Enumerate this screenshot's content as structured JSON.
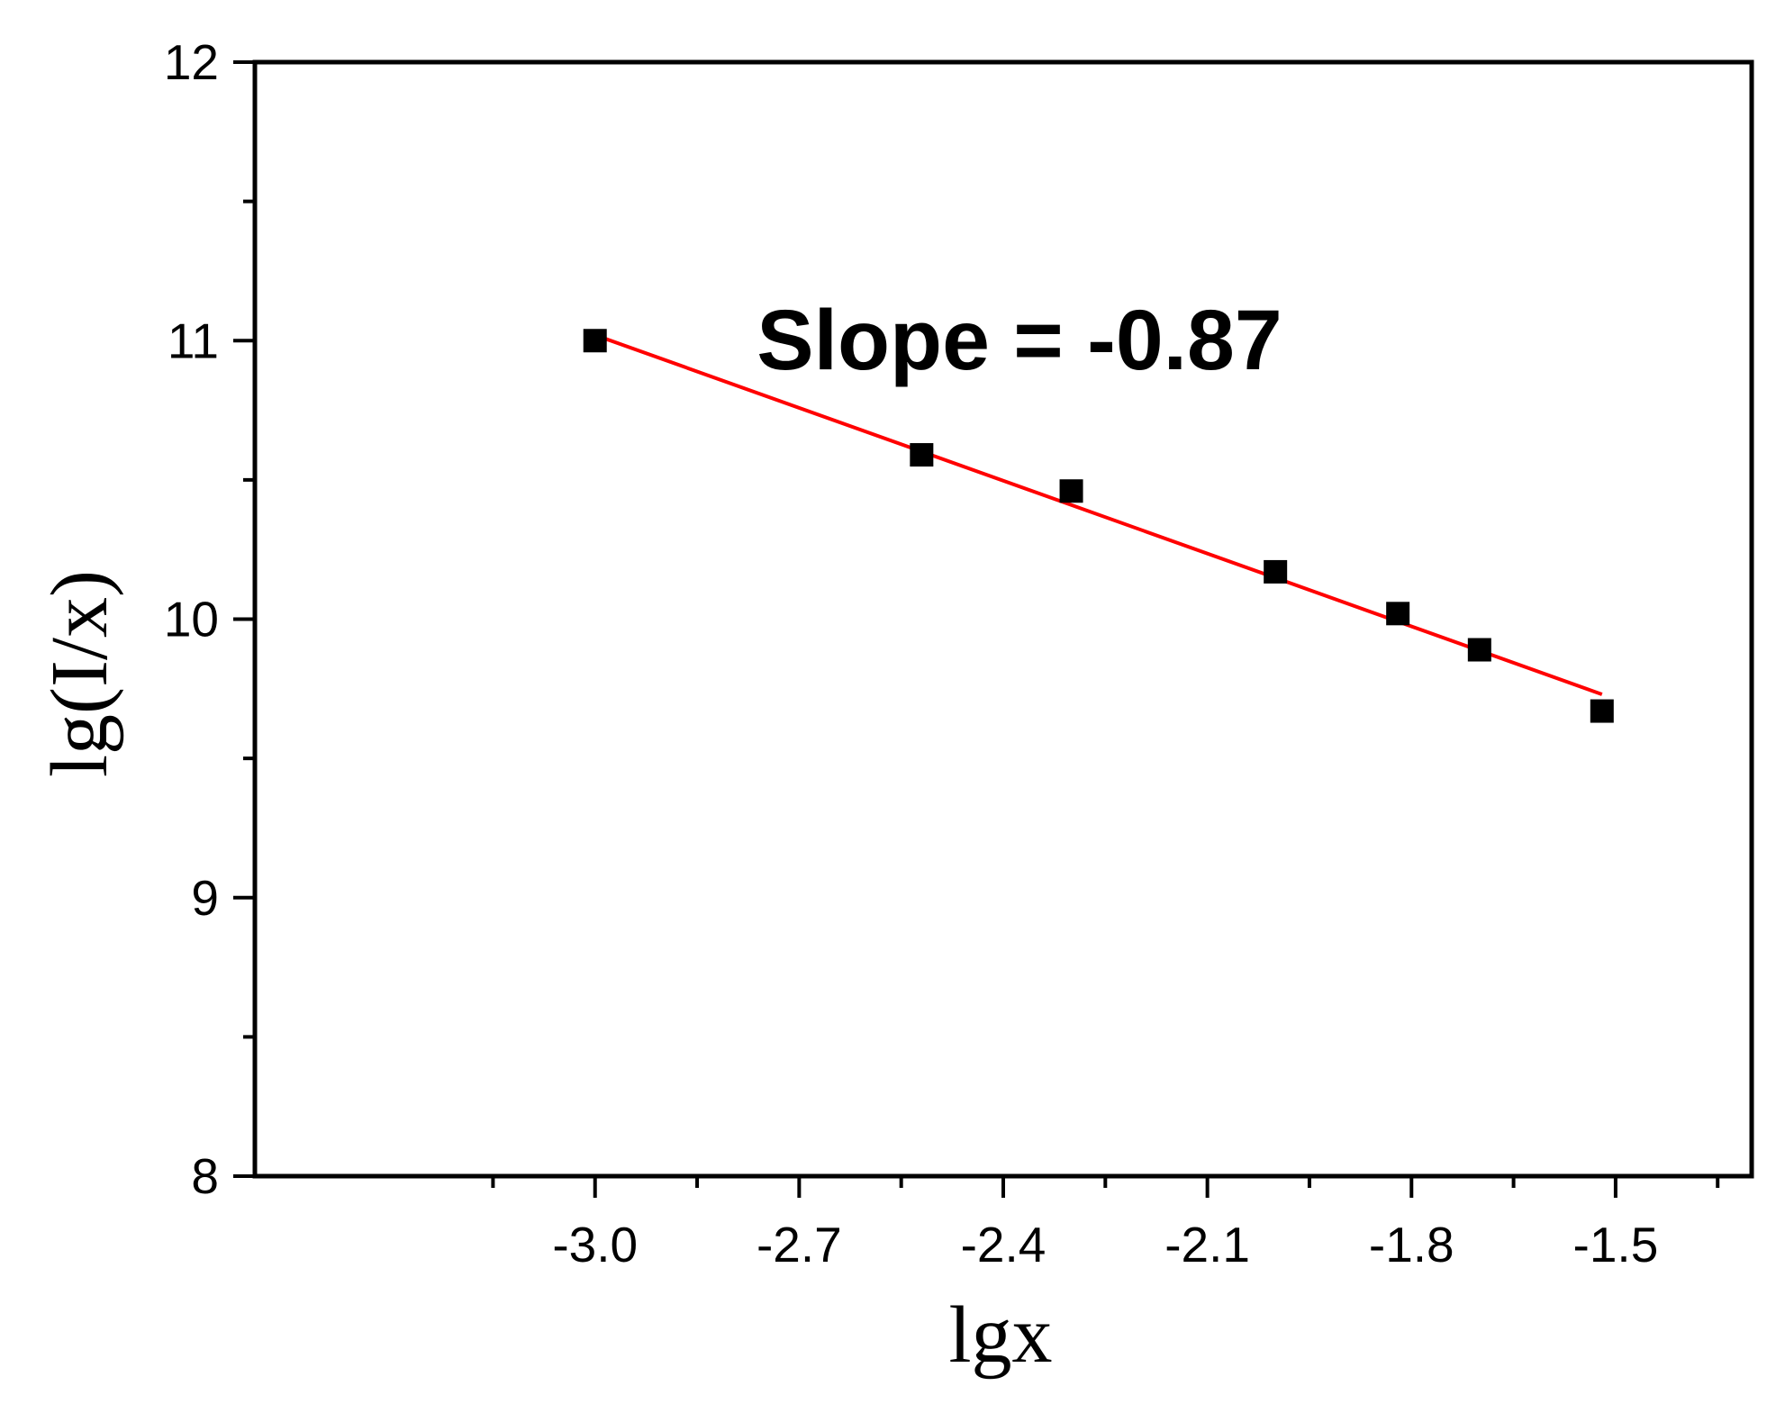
{
  "chart_data": {
    "type": "scatter",
    "title": "",
    "xlabel": "lgx",
    "ylabel": "lg(I/x)",
    "xlim": [
      -3.5,
      -1.3
    ],
    "ylim": [
      8,
      12
    ],
    "xticks": [
      -3.0,
      -2.7,
      -2.4,
      -2.1,
      -1.8,
      -1.5
    ],
    "xtick_labels": [
      "-3.0",
      "-2.7",
      "-2.4",
      "-2.1",
      "-1.8",
      "-1.5"
    ],
    "xminor_ticks": [
      -3.15,
      -2.85,
      -2.55,
      -2.25,
      -1.95,
      -1.65,
      -1.35
    ],
    "yticks": [
      8,
      9,
      10,
      11,
      12
    ],
    "ytick_labels": [
      "8",
      "9",
      "10",
      "11",
      "12"
    ],
    "yminor_ticks": [
      8.5,
      9.5,
      10.5,
      11.5
    ],
    "grid": false,
    "legend": "none",
    "series": [
      {
        "type": "scatter",
        "marker": "square",
        "color": "#000000",
        "points": [
          {
            "x": -3.0,
            "y": 11.0
          },
          {
            "x": -2.52,
            "y": 10.59
          },
          {
            "x": -2.3,
            "y": 10.46
          },
          {
            "x": -2.0,
            "y": 10.17
          },
          {
            "x": -1.82,
            "y": 10.02
          },
          {
            "x": -1.7,
            "y": 9.89
          },
          {
            "x": -1.52,
            "y": 9.67
          }
        ]
      },
      {
        "type": "line",
        "color": "#ff0000",
        "points": [
          {
            "x": -3.0,
            "y": 11.02
          },
          {
            "x": -1.52,
            "y": 9.73
          }
        ]
      }
    ],
    "annotations": [
      {
        "text": "Slope = -0.87",
        "x": -2.24,
        "y": 11.0
      }
    ]
  }
}
